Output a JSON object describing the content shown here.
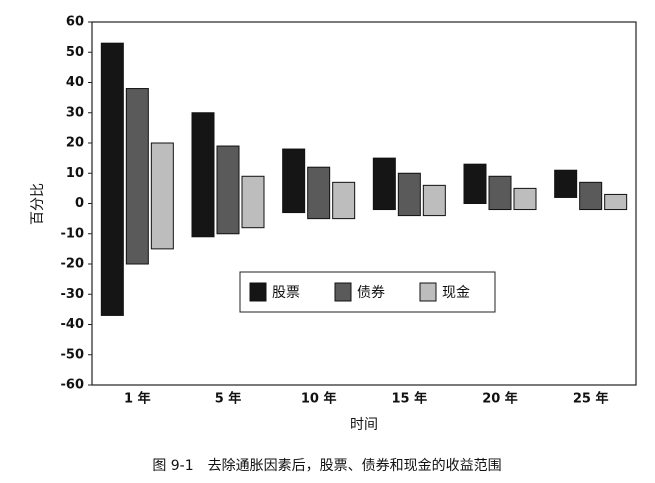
{
  "chart_data": {
    "type": "range-bar",
    "caption": "图 9-1　去除通胀因素后，股票、债券和现金的收益范围",
    "y_label": "百分比",
    "x_label": "时间",
    "categories": [
      "1 年",
      "5 年",
      "10 年",
      "15 年",
      "20 年",
      "25 年"
    ],
    "series": [
      {
        "name": "股票",
        "color": "#151515",
        "high": [
          53,
          30,
          18,
          15,
          13,
          11
        ],
        "low": [
          -37,
          -11,
          -3,
          -2,
          0,
          2
        ]
      },
      {
        "name": "债券",
        "color": "#5a5a5a",
        "high": [
          38,
          19,
          12,
          10,
          9,
          7
        ],
        "low": [
          -20,
          -10,
          -5,
          -4,
          -2,
          -2
        ]
      },
      {
        "name": "现金",
        "color": "#bdbdbd",
        "high": [
          20,
          9,
          7,
          6,
          5,
          3
        ],
        "low": [
          -15,
          -8,
          -5,
          -4,
          -2,
          -2
        ]
      }
    ],
    "ylim": [
      -60,
      60
    ],
    "yticks": [
      -60,
      -50,
      -40,
      -30,
      -20,
      -10,
      0,
      10,
      20,
      30,
      40,
      50,
      60
    ]
  }
}
